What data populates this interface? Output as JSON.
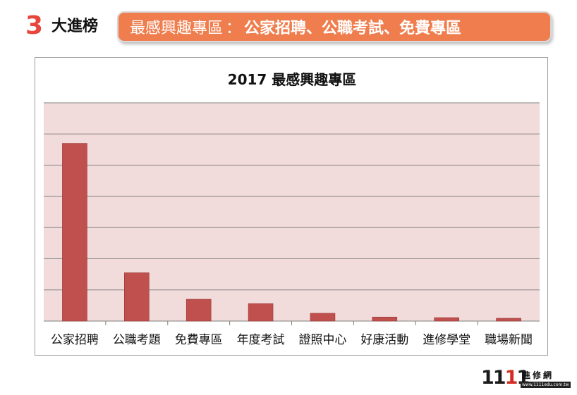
{
  "header": {
    "rank_number": "3",
    "rank_label": "大進榜",
    "banner_lead": "最感興趣專區",
    "banner_sep": "：",
    "banner_topics": "公家招聘、公職考試、免費專區",
    "banner_color": "#ef7d4d"
  },
  "chart_data": {
    "type": "bar",
    "title": "2017 最感興趣專區",
    "categories": [
      "公家招聘",
      "公職考題",
      "免費專區",
      "年度考試",
      "證照中心",
      "好康活動",
      "進修學堂",
      "職場新聞"
    ],
    "values": [
      57,
      15.5,
      7,
      5.6,
      2.5,
      1.3,
      1.1,
      0.9
    ],
    "ylim": [
      0,
      70
    ],
    "gridlines": 7,
    "bar_color": "#c0504d",
    "plot_background": "#f2dcdb",
    "grid": true,
    "legend": "none"
  },
  "logo": {
    "digits_black": "11",
    "digits_red": "1",
    "digits_black2": "1",
    "brand": "進修網",
    "url": "www.1111edu.com.tw"
  }
}
